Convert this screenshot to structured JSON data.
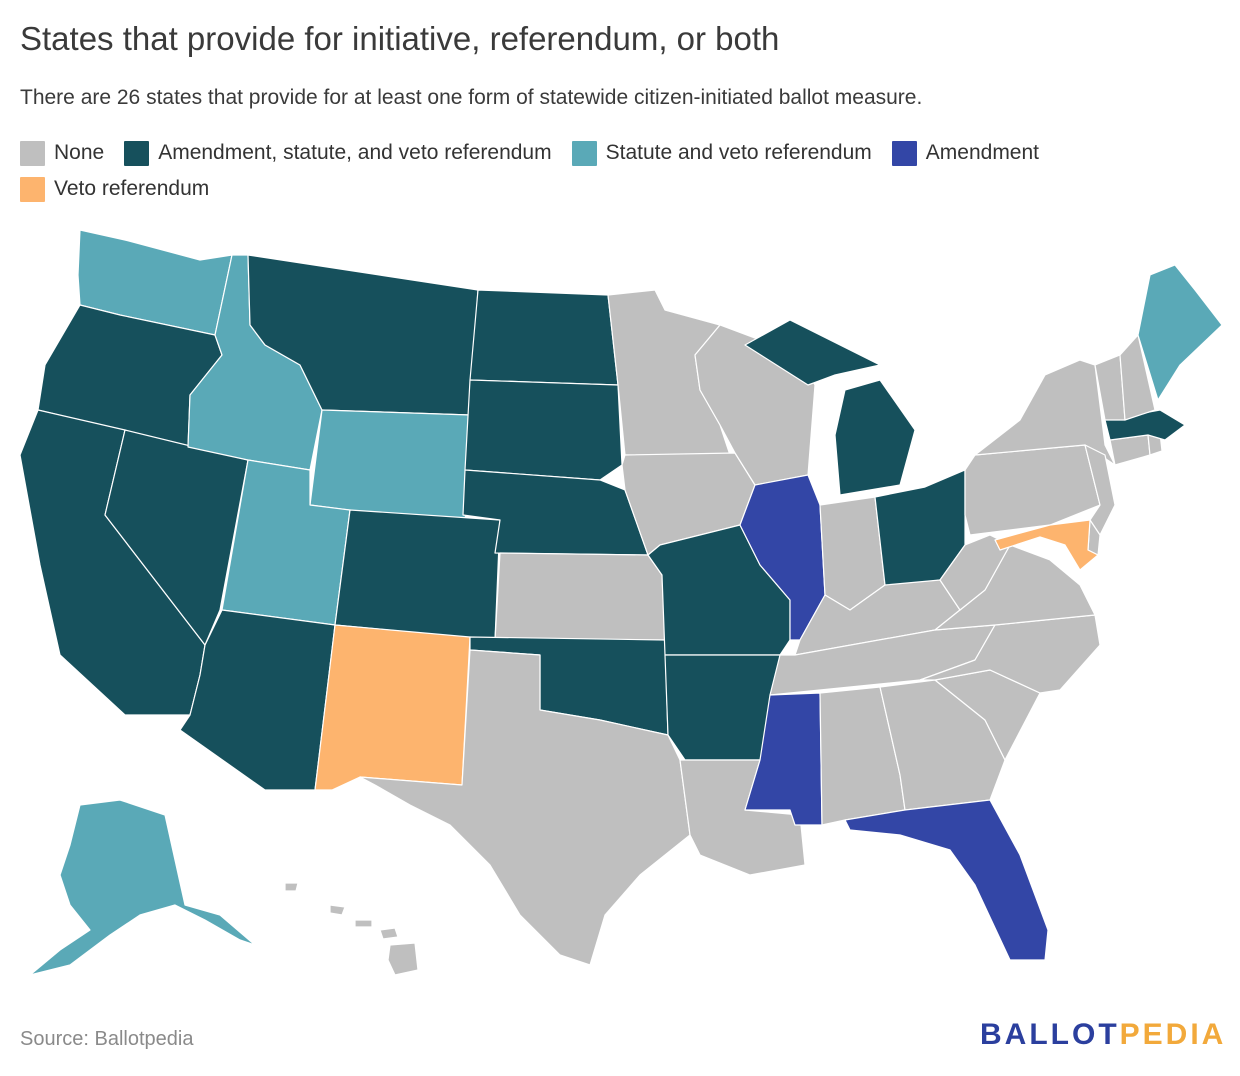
{
  "title": "States that provide for initiative, referendum, or both",
  "subtitle": "There are 26 states that provide for at least one form of statewide citizen-initiated ballot measure.",
  "legend": [
    {
      "label": "None",
      "color": "#bfbfbf"
    },
    {
      "label": "Amendment, statute, and veto referendum",
      "color": "#16505c"
    },
    {
      "label": "Statute and veto referendum",
      "color": "#5aa9b7"
    },
    {
      "label": "Amendment",
      "color": "#3346a6"
    },
    {
      "label": "Veto referendum",
      "color": "#fdb46e"
    }
  ],
  "source": "Source: Ballotpedia",
  "logo": {
    "part1": "BALLOT",
    "part2": "PEDIA"
  },
  "state_categories": {
    "WA": "Statute and veto referendum",
    "OR": "Amendment, statute, and veto referendum",
    "CA": "Amendment, statute, and veto referendum",
    "NV": "Amendment, statute, and veto referendum",
    "ID": "Statute and veto referendum",
    "MT": "Amendment, statute, and veto referendum",
    "WY": "Statute and veto referendum",
    "UT": "Statute and veto referendum",
    "AZ": "Amendment, statute, and veto referendum",
    "CO": "Amendment, statute, and veto referendum",
    "NM": "Veto referendum",
    "ND": "Amendment, statute, and veto referendum",
    "SD": "Amendment, statute, and veto referendum",
    "NE": "Amendment, statute, and veto referendum",
    "KS": "None",
    "OK": "Amendment, statute, and veto referendum",
    "TX": "None",
    "MN": "None",
    "IA": "None",
    "MO": "Amendment, statute, and veto referendum",
    "AR": "Amendment, statute, and veto referendum",
    "LA": "None",
    "WI": "None",
    "IL": "Amendment",
    "MI": "Amendment, statute, and veto referendum",
    "IN": "None",
    "OH": "Amendment, statute, and veto referendum",
    "KY": "None",
    "TN": "None",
    "MS": "Amendment",
    "AL": "None",
    "GA": "None",
    "FL": "Amendment",
    "SC": "None",
    "NC": "None",
    "VA": "None",
    "WV": "None",
    "PA": "None",
    "NY": "None",
    "VT": "None",
    "NH": "None",
    "ME": "Statute and veto referendum",
    "MA": "Amendment, statute, and veto referendum",
    "CT": "None",
    "RI": "None",
    "NJ": "None",
    "DE": "None",
    "MD": "Veto referendum",
    "AK": "Statute and veto referendum",
    "HI": "None"
  }
}
